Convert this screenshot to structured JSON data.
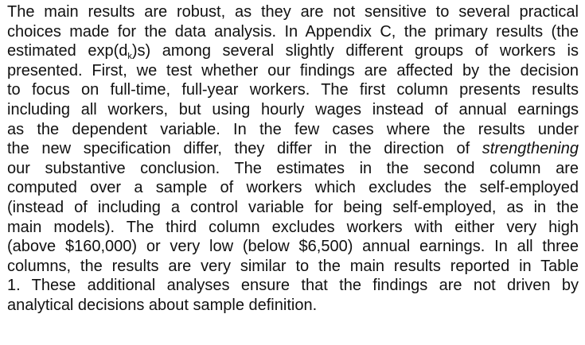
{
  "document": {
    "lines": [
      {
        "text": "The main results are robust, as they are not sensitive to several practical"
      },
      {
        "text": "choices made for the data analysis. In Appendix C, the primary results (the"
      },
      {
        "pre": "estimated exp(d",
        "sub": "k",
        "post": ")s) among several slightly different groups of workers is"
      },
      {
        "text": "presented. First, we test whether our findings are affected by the decision"
      },
      {
        "text": "to focus on full-time, full-year workers. The first column presents results"
      },
      {
        "text": "including all workers, but using hourly wages instead of annual earnings"
      },
      {
        "text": "as the dependent variable. In the few cases where the results under"
      },
      {
        "pre": "the new specification differ, they differ in the direction of ",
        "emph": "strengthening"
      },
      {
        "text": "our substantive conclusion. The estimates in the second column are"
      },
      {
        "text": "computed over a sample of workers which excludes the self-employed"
      },
      {
        "text": "(instead of including a control variable for being self-employed, as in the"
      },
      {
        "text": "main models). The third column excludes workers with either very high"
      },
      {
        "text": "(above $160,000) or very low (below $6,500) annual earnings. In all three"
      },
      {
        "text": "columns, the results are very similar to the main results reported in Table"
      },
      {
        "text": "1. These additional analyses ensure that the findings are not driven by"
      },
      {
        "text": "analytical decisions about sample definition."
      }
    ]
  }
}
